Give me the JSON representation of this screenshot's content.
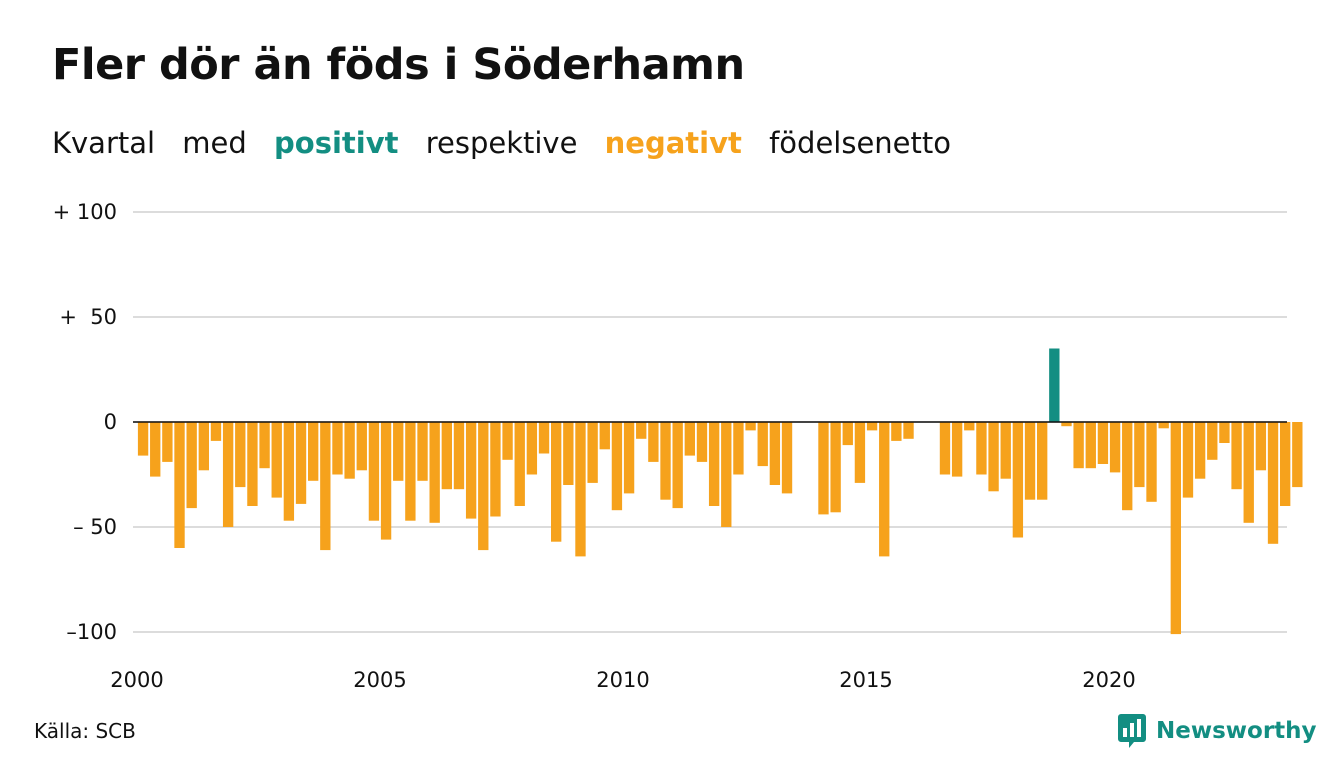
{
  "title": "Fler dör än föds i Söderhamn",
  "subtitle": {
    "part1": "Kvartal",
    "part2": "med",
    "positive_word": "positivt",
    "part3": "respektive",
    "negative_word": "negativt",
    "part4": "födelsenetto"
  },
  "colors": {
    "positive": "#138e82",
    "negative": "#f6a21c",
    "grid": "#dcdcdc"
  },
  "source": "Källa: SCB",
  "logo": {
    "text": "Newsworthy",
    "icon": "bar-chart-icon"
  },
  "chart_data": {
    "type": "bar",
    "xlabel": "",
    "ylabel": "",
    "ylim": [
      -100,
      100
    ],
    "grid": true,
    "yticks": [
      {
        "value": 100,
        "label": "+ 100"
      },
      {
        "value": 50,
        "label": "+  50"
      },
      {
        "value": 0,
        "label": "0"
      },
      {
        "value": -50,
        "label": "– 50"
      },
      {
        "value": -100,
        "label": "–100"
      }
    ],
    "xticks": [
      {
        "value": 2000,
        "label": "2000"
      },
      {
        "value": 2005,
        "label": "2005"
      },
      {
        "value": 2010,
        "label": "2010"
      },
      {
        "value": 2015,
        "label": "2015"
      },
      {
        "value": 2020,
        "label": "2020"
      }
    ],
    "start_year": 2000,
    "start_quarter": 1,
    "values": [
      -16,
      -26,
      -19,
      -60,
      -41,
      -23,
      -9,
      -50,
      -31,
      -40,
      -22,
      -36,
      -47,
      -39,
      -28,
      -61,
      -25,
      -27,
      -23,
      -47,
      -56,
      -28,
      -47,
      -28,
      -48,
      -32,
      -32,
      -46,
      -61,
      -45,
      -18,
      -40,
      -25,
      -15,
      -57,
      -30,
      -64,
      -29,
      -13,
      -42,
      -34,
      -8,
      -19,
      -37,
      -41,
      -16,
      -19,
      -40,
      -50,
      -25,
      -4,
      -21,
      -30,
      -34,
      0,
      0,
      -44,
      -43,
      -11,
      -29,
      -4,
      -64,
      -9,
      -8,
      0,
      0,
      -25,
      -26,
      -4,
      -25,
      -33,
      -27,
      -55,
      -37,
      -37,
      35,
      -2,
      -22,
      -22,
      -20,
      -24,
      -42,
      -31,
      -38,
      -3,
      -101,
      -36,
      -27,
      -18,
      -10,
      -32,
      -48,
      -23,
      -58,
      -40,
      -31
    ]
  }
}
